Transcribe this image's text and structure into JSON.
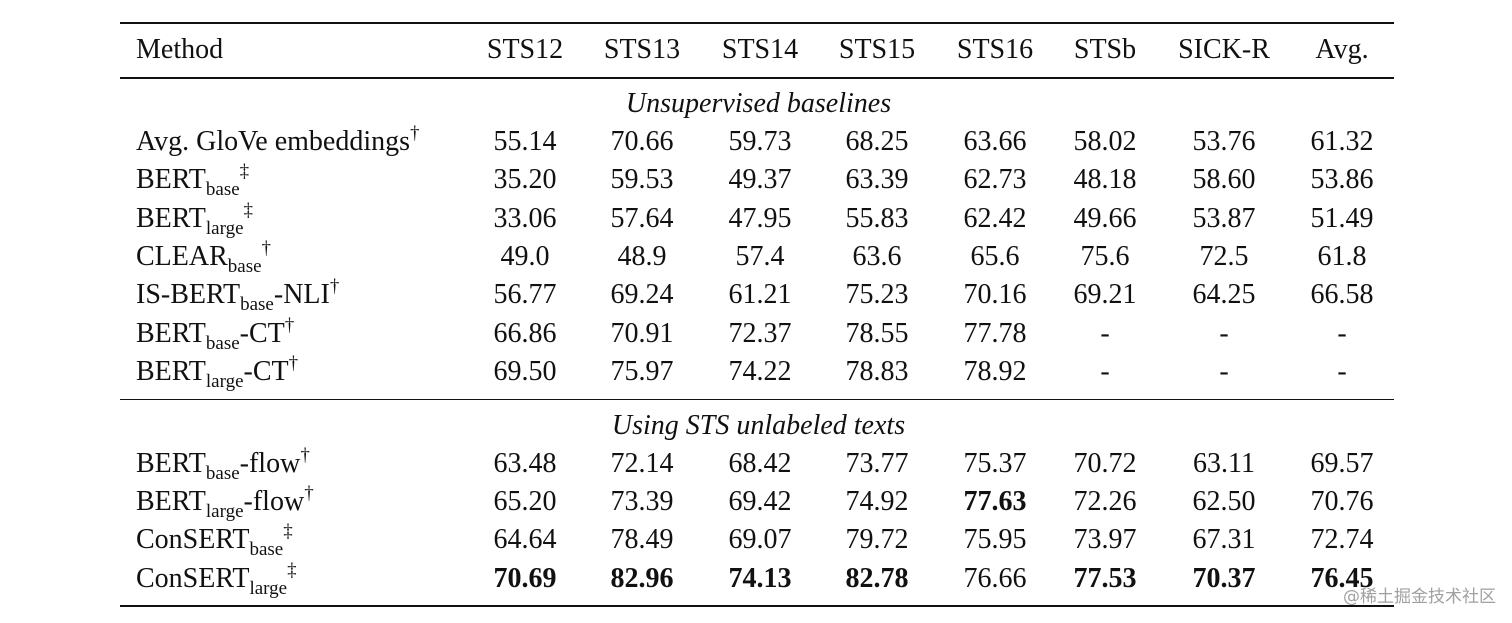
{
  "table": {
    "columns": [
      "Method",
      "STS12",
      "STS13",
      "STS14",
      "STS15",
      "STS16",
      "STSb",
      "SICK-R",
      "Avg."
    ],
    "sections": [
      {
        "title": "Unsupervised baselines",
        "rows": [
          {
            "method": [
              {
                "text": "Avg. GloVe embeddings"
              },
              {
                "sup": "†"
              }
            ],
            "values": [
              "55.14",
              "70.66",
              "59.73",
              "68.25",
              "63.66",
              "58.02",
              "53.76",
              "61.32"
            ]
          },
          {
            "method": [
              {
                "text": "BERT"
              },
              {
                "sub": "base"
              },
              {
                "sup": "‡"
              }
            ],
            "values": [
              "35.20",
              "59.53",
              "49.37",
              "63.39",
              "62.73",
              "48.18",
              "58.60",
              "53.86"
            ]
          },
          {
            "method": [
              {
                "text": "BERT"
              },
              {
                "sub": "large"
              },
              {
                "sup": "‡"
              }
            ],
            "values": [
              "33.06",
              "57.64",
              "47.95",
              "55.83",
              "62.42",
              "49.66",
              "53.87",
              "51.49"
            ]
          },
          {
            "method": [
              {
                "text": "CLEAR"
              },
              {
                "sub": "base"
              },
              {
                "sup": "†"
              }
            ],
            "values": [
              "49.0",
              "48.9",
              "57.4",
              "63.6",
              "65.6",
              "75.6",
              "72.5",
              "61.8"
            ]
          },
          {
            "method": [
              {
                "text": "IS-BERT"
              },
              {
                "sub": "base"
              },
              {
                "text": "-NLI"
              },
              {
                "sup": "†"
              }
            ],
            "values": [
              "56.77",
              "69.24",
              "61.21",
              "75.23",
              "70.16",
              "69.21",
              "64.25",
              "66.58"
            ]
          },
          {
            "method": [
              {
                "text": "BERT"
              },
              {
                "sub": "base"
              },
              {
                "text": "-CT"
              },
              {
                "sup": "†"
              }
            ],
            "values": [
              "66.86",
              "70.91",
              "72.37",
              "78.55",
              "77.78",
              "-",
              "-",
              "-"
            ]
          },
          {
            "method": [
              {
                "text": "BERT"
              },
              {
                "sub": "large"
              },
              {
                "text": "-CT"
              },
              {
                "sup": "†"
              }
            ],
            "values": [
              "69.50",
              "75.97",
              "74.22",
              "78.83",
              "78.92",
              "-",
              "-",
              "-"
            ]
          }
        ]
      },
      {
        "title": "Using STS unlabeled texts",
        "rows": [
          {
            "method": [
              {
                "text": "BERT"
              },
              {
                "sub": "base"
              },
              {
                "text": "-flow"
              },
              {
                "sup": "†"
              }
            ],
            "values": [
              "63.48",
              "72.14",
              "68.42",
              "73.77",
              "75.37",
              "70.72",
              "63.11",
              "69.57"
            ]
          },
          {
            "method": [
              {
                "text": "BERT"
              },
              {
                "sub": "large"
              },
              {
                "text": "-flow"
              },
              {
                "sup": "†"
              }
            ],
            "values": [
              "65.20",
              "73.39",
              "69.42",
              "74.92",
              "77.63",
              "72.26",
              "62.50",
              "70.76"
            ],
            "bold": [
              4
            ]
          },
          {
            "method": [
              {
                "text": "ConSERT"
              },
              {
                "sub": "base"
              },
              {
                "sup": "‡"
              }
            ],
            "values": [
              "64.64",
              "78.49",
              "69.07",
              "79.72",
              "75.95",
              "73.97",
              "67.31",
              "72.74"
            ]
          },
          {
            "method": [
              {
                "text": "ConSERT"
              },
              {
                "sub": "large"
              },
              {
                "sup": "‡"
              }
            ],
            "values": [
              "70.69",
              "82.96",
              "74.13",
              "82.78",
              "76.66",
              "77.53",
              "70.37",
              "76.45"
            ],
            "bold": [
              0,
              1,
              2,
              3,
              5,
              6,
              7
            ]
          }
        ]
      }
    ]
  },
  "watermark": "@稀土掘金技术社区"
}
